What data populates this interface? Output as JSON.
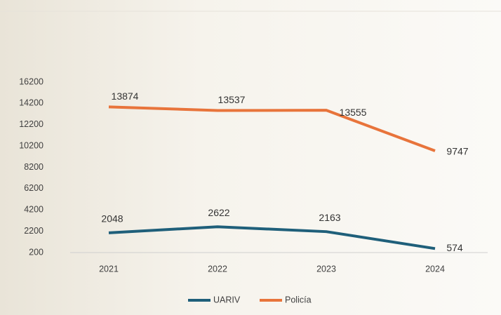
{
  "chart_data": {
    "type": "line",
    "categories": [
      "2021",
      "2022",
      "2023",
      "2024"
    ],
    "series": [
      {
        "name": "UARIV",
        "color": "#1f5f7a",
        "values": [
          2048,
          2622,
          2163,
          574
        ]
      },
      {
        "name": "Policía",
        "color": "#e8743b",
        "values": [
          13874,
          13537,
          13555,
          9747
        ]
      }
    ],
    "ylim": [
      200,
      16200
    ],
    "yticks": [
      200,
      2200,
      4200,
      6200,
      8200,
      10200,
      12200,
      14200,
      16200
    ],
    "legend": "bottom"
  }
}
